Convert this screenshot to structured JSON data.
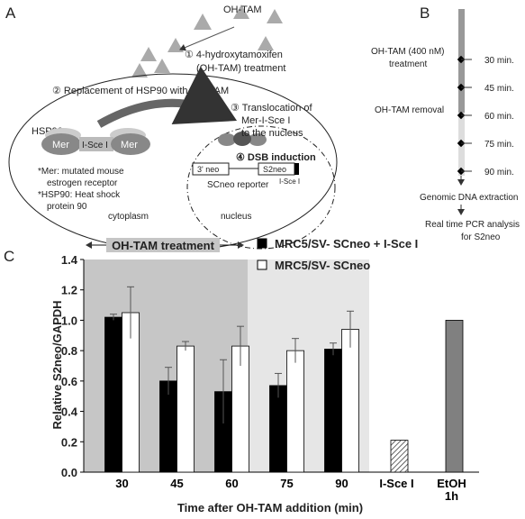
{
  "panel_a": {
    "letter": "A",
    "drug": "OH-TAM",
    "step1a": "① 4-hydroxytamoxifen",
    "step1b": "(OH-TAM) treatment",
    "step2": "② Replacement of HSP90 with OH-TAM",
    "hsp90": "HSP90",
    "mer_left": "Mer",
    "isce": "I-Sce I",
    "mer_right": "Mer",
    "step3a": "③ Translocation of",
    "step3b": "Mer-I-Sce I",
    "step3c": "to the nucleus",
    "step4": "④ DSB induction",
    "neo3": "3' neo",
    "s2neo": "S2neo",
    "reporter": "SCneo reporter",
    "site": "I-Sce I",
    "note1a": "*Mer: mutated mouse",
    "note1b": "estrogen receptor",
    "note2a": "*HSP90: Heat shock",
    "note2b": "protein 90",
    "cytoplasm": "cytoplasm",
    "nucleus": "nucleus"
  },
  "panel_b": {
    "letter": "B",
    "treat_a": "OH-TAM (400 nM)",
    "treat_b": "treatment",
    "removal": "OH-TAM removal",
    "times": [
      "30 min.",
      "45 min.",
      "60 min.",
      "75 min.",
      "90 min."
    ],
    "extract": "Genomic DNA extraction",
    "pcr_a": "Real time PCR analysis",
    "pcr_b": "for S2neo"
  },
  "chart_data": {
    "type": "bar",
    "letter": "C",
    "shade_label": "OH-TAM treatment",
    "ylabel": "Relative S2neo/GAPDH",
    "xlabel": "Time after OH-TAM addition (min)",
    "categories": [
      "30",
      "45",
      "60",
      "75",
      "90",
      "I-Sce I",
      "EtOH 1h"
    ],
    "series": [
      {
        "name": "MRC5/SV- SCneo + I-Sce I",
        "color": "#000000",
        "values": [
          1.02,
          0.6,
          0.53,
          0.57,
          0.81,
          null,
          null
        ],
        "errors": [
          0.02,
          0.09,
          0.21,
          0.08,
          0.04,
          null,
          null
        ]
      },
      {
        "name": "MRC5/SV- SCneo",
        "color": "#ffffff",
        "values": [
          1.05,
          0.83,
          0.83,
          0.8,
          0.94,
          null,
          null
        ],
        "errors": [
          0.17,
          0.03,
          0.13,
          0.08,
          0.12,
          null,
          null
        ]
      }
    ],
    "controls": {
      "values": [
        null,
        null,
        null,
        null,
        null,
        0.21,
        1.0
      ],
      "colors": [
        null,
        null,
        null,
        null,
        null,
        "hatch",
        "#808080"
      ]
    },
    "ylim": [
      0,
      1.4
    ],
    "yticks": [
      {
        "value": 0,
        "label": "0.0"
      },
      0.2,
      0.4,
      0.6,
      0.8,
      {
        "value": 1,
        "label": "1.0"
      },
      1.2,
      1.4
    ]
  }
}
